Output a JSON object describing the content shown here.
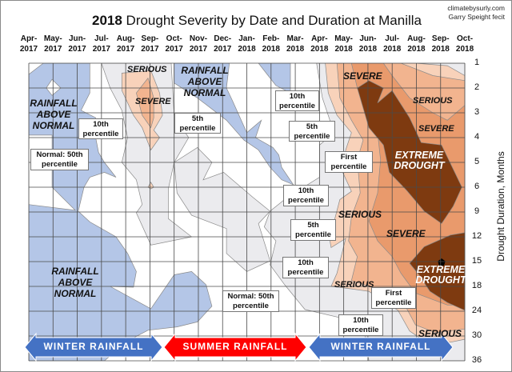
{
  "title": {
    "bold": "2018",
    "rest": " Drought Severity by Date and Duration at Manilla"
  },
  "credit": {
    "line1": "climatebysurly.com",
    "line2": "Garry Speight fecit"
  },
  "chart_data": {
    "type": "heatmap",
    "subtype": "filled-contour",
    "x_tick_labels": [
      [
        "Apr-",
        "2017"
      ],
      [
        "May-",
        "2017"
      ],
      [
        "Jun-",
        "2017"
      ],
      [
        "Jul-",
        "2017"
      ],
      [
        "Aug-",
        "2017"
      ],
      [
        "Sep-",
        "2017"
      ],
      [
        "Oct-",
        "2017"
      ],
      [
        "Nov-",
        "2017"
      ],
      [
        "Dec-",
        "2017"
      ],
      [
        "Jan-",
        "2018"
      ],
      [
        "Feb-",
        "2018"
      ],
      [
        "Mar-",
        "2018"
      ],
      [
        "Apr-",
        "2018"
      ],
      [
        "May-",
        "2018"
      ],
      [
        "Jun-",
        "2018"
      ],
      [
        "Jul-",
        "2018"
      ],
      [
        "Aug-",
        "2018"
      ],
      [
        "Sep-",
        "2018"
      ],
      [
        "Oct-",
        "2018"
      ]
    ],
    "x_range_decimal_year": [
      2017.25,
      2018.75
    ],
    "y_ticks": [
      1,
      2,
      3,
      4,
      5,
      6,
      9,
      12,
      15,
      18,
      24,
      30,
      36
    ],
    "y_tick_labels": [
      "1",
      "2",
      "3",
      "4",
      "5",
      "6",
      "9",
      "12",
      "15",
      "18",
      "24",
      "30",
      "36"
    ],
    "ylabel": "Drought  Duration, Months",
    "y_direction": "down",
    "grid": true,
    "colors": {
      "above_normal": "#b4c6e7",
      "tenth_percentile": "#ebebee",
      "fifth_percentile": "#f8d2ba",
      "first_percentile": "#f2b48f",
      "severe": "#e99a6c",
      "extreme": "#7e3a10",
      "winter": "#4472c4",
      "summer": "#ff0000"
    },
    "regions": [
      {
        "level": "above_normal",
        "points": [
          [
            2017.25,
            1.45
          ],
          [
            2017.3,
            1
          ],
          [
            2017.46,
            1
          ],
          [
            2017.46,
            2.2
          ],
          [
            2017.43,
            2.9
          ],
          [
            2017.48,
            3.2
          ],
          [
            2017.48,
            4.0
          ],
          [
            2017.49,
            4.6
          ],
          [
            2017.51,
            5
          ],
          [
            2017.55,
            5.6
          ],
          [
            2017.51,
            5.4
          ],
          [
            2017.46,
            5.6
          ],
          [
            2017.44,
            6
          ],
          [
            2017.42,
            8.9
          ],
          [
            2017.46,
            10.2
          ],
          [
            2017.55,
            12
          ],
          [
            2017.59,
            14
          ],
          [
            2017.62,
            16.2
          ],
          [
            2017.61,
            18.2
          ],
          [
            2017.53,
            18
          ],
          [
            2017.67,
            23.4
          ],
          [
            2017.75,
            16.6
          ],
          [
            2017.81,
            16.2
          ],
          [
            2017.86,
            17.8
          ],
          [
            2017.88,
            22.8
          ],
          [
            2017.83,
            26.6
          ],
          [
            2017.76,
            27.8
          ],
          [
            2017.66,
            28.6
          ],
          [
            2017.59,
            31.2
          ],
          [
            2017.51,
            36
          ],
          [
            2017.25,
            36
          ]
        ]
      },
      {
        "level": "normal",
        "points": [
          [
            2017.25,
            3.9
          ],
          [
            2017.33,
            3.9
          ],
          [
            2017.33,
            6.0
          ],
          [
            2017.41,
            8.8
          ],
          [
            2017.25,
            8.1
          ]
        ]
      },
      {
        "level": "normal",
        "points": [
          [
            2017.33,
            1.65
          ],
          [
            2017.36,
            2
          ],
          [
            2017.33,
            2.3
          ],
          [
            2017.31,
            2
          ]
        ]
      },
      {
        "level": "above_normal",
        "points": [
          [
            2017.75,
            1
          ],
          [
            2017.94,
            1
          ],
          [
            2017.93,
            2
          ],
          [
            2017.95,
            2.5
          ],
          [
            2018.0,
            3.8
          ],
          [
            2018.05,
            3.3
          ],
          [
            2018.03,
            4
          ],
          [
            2018.09,
            4.4
          ],
          [
            2018.11,
            4.7
          ],
          [
            2018.12,
            5.2
          ],
          [
            2018.16,
            5.9
          ],
          [
            2018.12,
            5.7
          ],
          [
            2018.08,
            5.2
          ],
          [
            2018.04,
            4.5
          ],
          [
            2017.99,
            4.1
          ],
          [
            2017.93,
            3.3
          ],
          [
            2017.83,
            2.4
          ],
          [
            2017.75,
            1.8
          ]
        ]
      },
      {
        "level": "above_normal",
        "points": [
          [
            2018.04,
            1
          ],
          [
            2018.15,
            1
          ],
          [
            2018.15,
            2.2
          ],
          [
            2018.1,
            1.9
          ],
          [
            2018.07,
            1.45
          ]
        ]
      },
      {
        "level": "tenth_percentile",
        "points": [
          [
            2017.5,
            1
          ],
          [
            2017.74,
            1
          ],
          [
            2017.75,
            3.1
          ],
          [
            2017.8,
            4.0
          ],
          [
            2017.75,
            5.0
          ],
          [
            2017.73,
            6.2
          ],
          [
            2017.73,
            9.8
          ],
          [
            2017.81,
            12
          ],
          [
            2017.67,
            13
          ],
          [
            2017.62,
            9.1
          ],
          [
            2017.64,
            8.1
          ],
          [
            2017.62,
            5.7
          ],
          [
            2017.57,
            5.0
          ],
          [
            2017.59,
            4.0
          ],
          [
            2017.57,
            2.9
          ],
          [
            2017.53,
            2.0
          ]
        ]
      },
      {
        "level": "tenth_percentile",
        "points": [
          [
            2017.75,
            5.0
          ],
          [
            2017.83,
            4.4
          ],
          [
            2017.88,
            5.0
          ],
          [
            2017.85,
            5.7
          ],
          [
            2017.92,
            5.4
          ],
          [
            2018.02,
            7.2
          ],
          [
            2018.08,
            8.9
          ],
          [
            2018.04,
            10.4
          ],
          [
            2018.08,
            14.9
          ],
          [
            2018.0,
            16.2
          ],
          [
            2017.93,
            14.0
          ],
          [
            2017.93,
            11.0
          ],
          [
            2017.81,
            9.4
          ],
          [
            2017.76,
            6.7
          ]
        ]
      },
      {
        "level": "tenth_percentile",
        "points": [
          [
            2018.24,
            1
          ],
          [
            2018.75,
            1
          ],
          [
            2018.75,
            36
          ],
          [
            2018.42,
            36
          ],
          [
            2018.4,
            27.2
          ],
          [
            2018.31,
            25.4
          ],
          [
            2018.2,
            23.6
          ],
          [
            2018.13,
            17.8
          ],
          [
            2018.08,
            15.4
          ],
          [
            2018.1,
            12.5
          ],
          [
            2018.06,
            10.8
          ],
          [
            2018.08,
            8.9
          ],
          [
            2018.14,
            7.2
          ],
          [
            2018.25,
            5.6
          ],
          [
            2018.25,
            4.3
          ],
          [
            2018.3,
            3.8
          ],
          [
            2018.26,
            2.4
          ]
        ]
      },
      {
        "level": "fifth_percentile",
        "points": [
          [
            2018.27,
            1
          ],
          [
            2018.28,
            2.2
          ],
          [
            2018.31,
            3.1
          ],
          [
            2018.36,
            3.8
          ],
          [
            2018.34,
            4.5
          ],
          [
            2018.33,
            5.4
          ],
          [
            2018.36,
            6.5
          ],
          [
            2018.32,
            7.5
          ],
          [
            2018.3,
            10.2
          ],
          [
            2018.28,
            11.3
          ],
          [
            2018.29,
            13.3
          ],
          [
            2018.34,
            12.2
          ],
          [
            2018.31,
            16.4
          ],
          [
            2018.29,
            18
          ],
          [
            2018.36,
            18.6
          ],
          [
            2018.42,
            19.2
          ],
          [
            2018.52,
            23.8
          ],
          [
            2018.56,
            28.8
          ],
          [
            2018.6,
            30.7
          ],
          [
            2018.7,
            31.5
          ],
          [
            2018.75,
            30.8
          ],
          [
            2018.75,
            1.5
          ],
          [
            2018.69,
            1.1
          ],
          [
            2018.58,
            1
          ]
        ]
      },
      {
        "level": "first_percentile",
        "points": [
          [
            2018.31,
            1
          ],
          [
            2018.32,
            2.4
          ],
          [
            2018.36,
            3.3
          ],
          [
            2018.4,
            4.1
          ],
          [
            2018.38,
            4.9
          ],
          [
            2018.39,
            6.7
          ],
          [
            2018.36,
            9.6
          ],
          [
            2018.35,
            12.5
          ],
          [
            2018.38,
            14.4
          ],
          [
            2018.36,
            17.3
          ],
          [
            2018.45,
            18.6
          ],
          [
            2018.54,
            22
          ],
          [
            2018.58,
            27.3
          ],
          [
            2018.65,
            29.2
          ],
          [
            2018.75,
            28.3
          ],
          [
            2018.75,
            1.7
          ],
          [
            2018.64,
            1.5
          ],
          [
            2018.53,
            1
          ]
        ]
      },
      {
        "level": "severe",
        "points": [
          [
            2018.36,
            1
          ],
          [
            2018.38,
            2
          ],
          [
            2018.42,
            3
          ],
          [
            2018.45,
            3.8
          ],
          [
            2018.46,
            4.9
          ],
          [
            2018.45,
            6.7
          ],
          [
            2018.42,
            10.1
          ],
          [
            2018.45,
            12.5
          ],
          [
            2018.5,
            14.4
          ],
          [
            2018.53,
            16.4
          ],
          [
            2018.58,
            19.6
          ],
          [
            2018.69,
            22.5
          ],
          [
            2018.75,
            22.5
          ],
          [
            2018.75,
            2.7
          ],
          [
            2018.69,
            3.3
          ],
          [
            2018.64,
            3
          ],
          [
            2018.56,
            2.4
          ],
          [
            2018.5,
            1.5
          ],
          [
            2018.47,
            1
          ]
        ]
      },
      {
        "level": "extreme",
        "points": [
          [
            2018.38,
            2
          ],
          [
            2018.42,
            1.7
          ],
          [
            2018.47,
            2
          ],
          [
            2018.45,
            2.6
          ],
          [
            2018.5,
            2.1
          ],
          [
            2018.56,
            3.2
          ],
          [
            2018.6,
            4.2
          ],
          [
            2018.67,
            4.3
          ],
          [
            2018.74,
            6
          ],
          [
            2018.71,
            8.3
          ],
          [
            2018.67,
            10.4
          ],
          [
            2018.61,
            8.9
          ],
          [
            2018.55,
            6.4
          ],
          [
            2018.49,
            5.4
          ],
          [
            2018.47,
            4.3
          ],
          [
            2018.42,
            3.6
          ]
        ]
      },
      {
        "level": "extreme",
        "points": [
          [
            2018.56,
            15.2
          ],
          [
            2018.61,
            13.2
          ],
          [
            2018.7,
            11.8
          ],
          [
            2018.75,
            11.5
          ],
          [
            2018.75,
            23.8
          ],
          [
            2018.69,
            21.9
          ],
          [
            2018.63,
            19.2
          ],
          [
            2018.59,
            16.5
          ]
        ]
      },
      {
        "level": "fifth_percentile",
        "points": [
          [
            2017.57,
            1.4
          ],
          [
            2017.67,
            1.3
          ],
          [
            2017.7,
            2.2
          ],
          [
            2017.71,
            3.1
          ],
          [
            2017.68,
            3.7
          ],
          [
            2017.7,
            4.0
          ],
          [
            2017.67,
            4.5
          ],
          [
            2017.64,
            3.6
          ],
          [
            2017.61,
            3.1
          ],
          [
            2017.57,
            2.1
          ]
        ]
      },
      {
        "level": "first_percentile",
        "points": [
          [
            2017.66,
            1.6
          ],
          [
            2017.68,
            2.4
          ],
          [
            2017.68,
            3.2
          ],
          [
            2017.67,
            3.6
          ],
          [
            2017.64,
            3.1
          ],
          [
            2017.62,
            2.2
          ]
        ]
      },
      {
        "level": "fifth_percentile",
        "points": [
          [
            2017.67,
            5.8
          ],
          [
            2017.68,
            6
          ],
          [
            2017.67,
            6.2
          ],
          [
            2017.66,
            6
          ]
        ]
      }
    ],
    "peak_marker": {
      "x": 2018.67,
      "y": 15.1
    },
    "annotations": {
      "zones": [
        "SERIOUS",
        "SEVERE",
        "RAINFALL",
        "ABOVE",
        "NORMAL",
        "SEVERE",
        "SERIOUS",
        "SEVERE",
        "EXTREME",
        "DROUGHT",
        "SERIOUS",
        "SEVERE",
        "EXTREME",
        "DROUGHT",
        "SERIOUS",
        "SERIOUS"
      ],
      "callouts": {
        "tenth": [
          "10th",
          "percentile"
        ],
        "fifth": [
          "5th",
          "percentile"
        ],
        "first": [
          "First",
          "percentile"
        ],
        "normal": [
          "Normal: 50th",
          "percentile"
        ]
      }
    },
    "seasons": [
      {
        "label": "WINTER RAINFALL",
        "color": "#4472c4",
        "from": "Apr-2017",
        "to": "Sep-2017"
      },
      {
        "label": "SUMMER RAINFALL",
        "color": "#ff0000",
        "from": "Oct-2017",
        "to": "Mar-2018"
      },
      {
        "label": "WINTER RAINFALL",
        "color": "#4472c4",
        "from": "Apr-2018",
        "to": "Sep-2018"
      }
    ]
  }
}
